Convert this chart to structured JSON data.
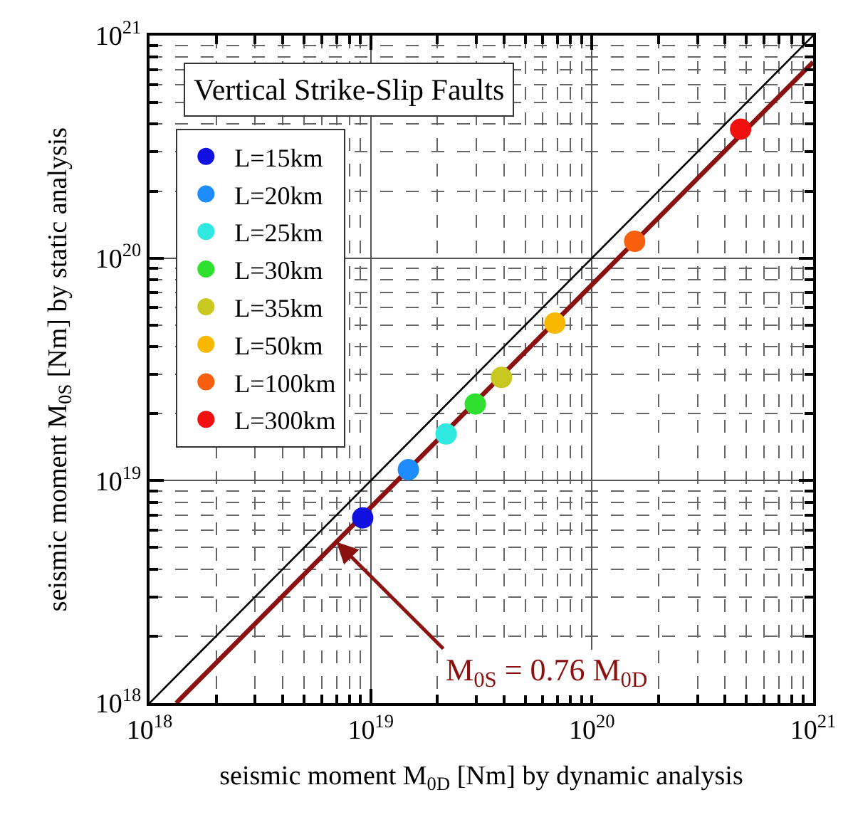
{
  "chart_data": {
    "type": "scatter",
    "title": "Vertical Strike-Slip Faults",
    "xlabel": "seismic moment M$_{0D}$ [Nm] by dynamic analysis",
    "ylabel": "seismic moment M$_{0S}$ [Nm] by static analysis",
    "log": "xy",
    "grid": true,
    "legend": "top left",
    "marker": "circle",
    "xlim": [
      1e+18,
      1e+21
    ],
    "ylim": [
      1e+18,
      1e+21
    ],
    "xticks": [
      {
        "value": 1e+18,
        "label": "10$^{18}$"
      },
      {
        "value": 1e+19,
        "label": "10$^{19}$"
      },
      {
        "value": 1e+20,
        "label": "10$^{20}$"
      },
      {
        "value": 1e+21,
        "label": "10$^{21}$"
      }
    ],
    "yticks": [
      {
        "value": 1e+18,
        "label": "10$^{18}$"
      },
      {
        "value": 1e+19,
        "label": "10$^{19}$"
      },
      {
        "value": 1e+20,
        "label": "10$^{20}$"
      },
      {
        "value": 1e+21,
        "label": "10$^{21}$"
      }
    ],
    "series": [
      {
        "type": "line",
        "marker": "none",
        "color": "#000000",
        "x": [
          1e+18,
          1e+21
        ],
        "values": [
          1e+18,
          1e+21
        ]
      },
      {
        "type": "line",
        "marker": "none",
        "color": "#8b1010",
        "x": [
          1.32e+18,
          1e+21
        ],
        "values": [
          1e+18,
          7.6e+20
        ]
      },
      {
        "name": "L=15km",
        "color": "#1010e0",
        "x": [
          9.2e+18
        ],
        "values": [
          6.8e+18
        ]
      },
      {
        "name": "L=20km",
        "color": "#1e8cff",
        "x": [
          1.48e+19
        ],
        "values": [
          1.12e+19
        ]
      },
      {
        "name": "L=25km",
        "color": "#30e8e0",
        "x": [
          2.19e+19
        ],
        "values": [
          1.62e+19
        ]
      },
      {
        "name": "L=30km",
        "color": "#30e030",
        "x": [
          2.97e+19
        ],
        "values": [
          2.21e+19
        ]
      },
      {
        "name": "L=35km",
        "color": "#c8c820",
        "x": [
          3.9e+19
        ],
        "values": [
          2.91e+19
        ]
      },
      {
        "name": "L=50km",
        "color": "#f8b800",
        "x": [
          6.8e+19
        ],
        "values": [
          5.1e+19
        ]
      },
      {
        "name": "L=100km",
        "color": "#f86010",
        "x": [
          1.56e+20
        ],
        "values": [
          1.19e+20
        ]
      },
      {
        "name": "L=300km",
        "color": "#f01010",
        "x": [
          4.7e+20
        ],
        "values": [
          3.8e+20
        ]
      }
    ],
    "annotations": [
      {
        "text": "M$_{0S}$ = 0.76 M$_{0D}$",
        "x": 7e+18,
        "y": 5.3e+18
      }
    ]
  }
}
